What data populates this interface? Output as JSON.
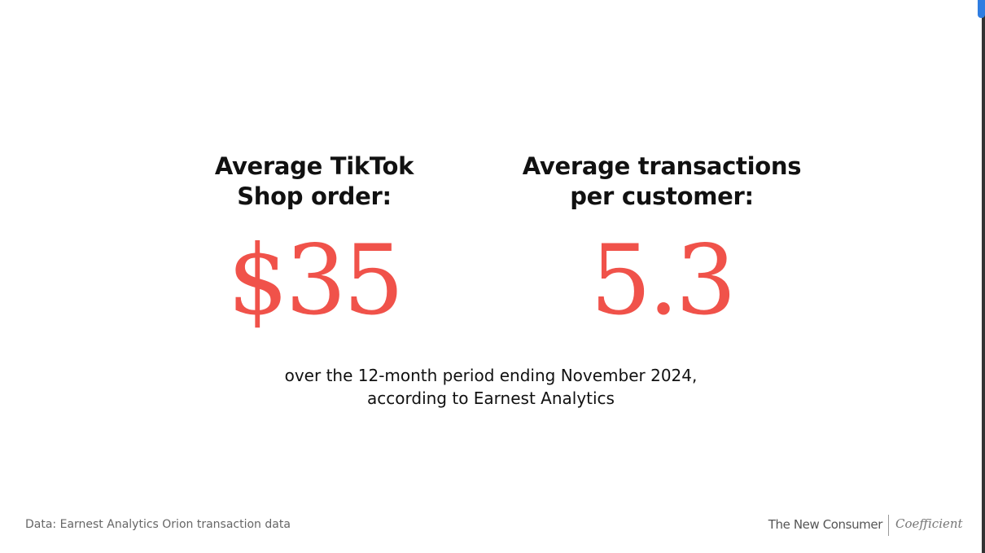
{
  "stats": [
    {
      "label": [
        "Average TikTok",
        "Shop order:"
      ],
      "value": "$35"
    },
    {
      "label": [
        "Average transactions",
        "per customer:"
      ],
      "value": "5.3"
    }
  ],
  "note": [
    "over the 12-month period ending November 2024,",
    "according to Earnest Analytics"
  ],
  "footer": {
    "source": "Data: Earnest Analytics Orion transaction data",
    "brand": "The New Consumer",
    "partner": "Coefficient"
  }
}
